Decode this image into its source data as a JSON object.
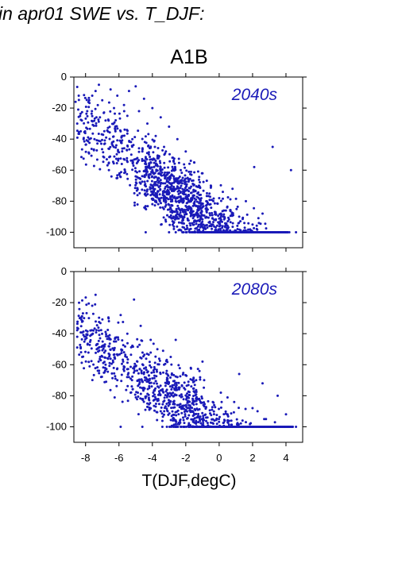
{
  "header": {
    "title": "in apr01 SWE vs. T_DJF:"
  },
  "scenario": "A1B",
  "colors": {
    "points": "#1a1ab8",
    "axis": "#000000"
  },
  "chart_data": [
    {
      "type": "scatter",
      "period_label": "2040s",
      "xlim": [
        -8.7,
        5.0
      ],
      "ylim": [
        -110,
        0
      ],
      "xticks": [
        -8,
        -6,
        -4,
        -2,
        0,
        2,
        4
      ],
      "yticks": [
        0,
        -20,
        -40,
        -60,
        -80,
        -100
      ],
      "ytick_labels": [
        "0",
        "-20",
        "-40",
        "-60",
        "-80",
        "-100"
      ],
      "point_count_estimate": 2400,
      "approx_trend": "SWE change decreases from about -20% near -8 degC to a floor of -100% above 0 degC; dense cluster between -4 and 2 degC",
      "points": [
        [
          -8.6,
          -16
        ],
        [
          -8.5,
          -30
        ],
        [
          -7.9,
          -22
        ],
        [
          -7.6,
          -12
        ],
        [
          -7.4,
          -9
        ],
        [
          -7.2,
          -5
        ],
        [
          -7.0,
          -15
        ],
        [
          -6.8,
          -28
        ],
        [
          -6.5,
          -8
        ],
        [
          -6.3,
          -20
        ],
        [
          -6.1,
          -12
        ],
        [
          -5.9,
          -35
        ],
        [
          -5.7,
          -18
        ],
        [
          -5.5,
          -25
        ],
        [
          -5.4,
          -9
        ],
        [
          -5.2,
          -40
        ],
        [
          -5.0,
          -6
        ],
        [
          -4.8,
          -22
        ],
        [
          -4.6,
          -48
        ],
        [
          -4.5,
          -14
        ],
        [
          -4.3,
          -30
        ],
        [
          -4.1,
          -55
        ],
        [
          -4.0,
          -20
        ],
        [
          -3.8,
          -38
        ],
        [
          -3.6,
          -62
        ],
        [
          -3.5,
          -26
        ],
        [
          -3.3,
          -45
        ],
        [
          -3.1,
          -70
        ],
        [
          -3.0,
          -32
        ],
        [
          -2.8,
          -52
        ],
        [
          -2.6,
          -80
        ],
        [
          -2.5,
          -40
        ],
        [
          -2.3,
          -60
        ],
        [
          -2.1,
          -90
        ],
        [
          -2.0,
          -48
        ],
        [
          -1.8,
          -66
        ],
        [
          -1.6,
          -100
        ],
        [
          -1.5,
          -55
        ],
        [
          -1.3,
          -75
        ],
        [
          -1.1,
          -100
        ],
        [
          -1.0,
          -62
        ],
        [
          -0.8,
          -85
        ],
        [
          -0.6,
          -100
        ],
        [
          -0.5,
          -70
        ],
        [
          -0.3,
          -92
        ],
        [
          -0.1,
          -100
        ],
        [
          0.0,
          -78
        ],
        [
          0.2,
          -100
        ],
        [
          0.4,
          -86
        ],
        [
          0.6,
          -100
        ],
        [
          0.8,
          -72
        ],
        [
          1.0,
          -100
        ],
        [
          1.2,
          -90
        ],
        [
          1.4,
          -100
        ],
        [
          1.6,
          -80
        ],
        [
          1.8,
          -100
        ],
        [
          2.0,
          -95
        ],
        [
          2.3,
          -100
        ],
        [
          2.6,
          -88
        ],
        [
          3.0,
          -100
        ],
        [
          3.4,
          -100
        ],
        [
          3.8,
          -100
        ],
        [
          4.2,
          -100
        ],
        [
          4.6,
          -100
        ],
        [
          -4.4,
          -100
        ],
        [
          -3.0,
          -100
        ],
        [
          -2.2,
          -100
        ],
        [
          3.2,
          -45
        ],
        [
          2.1,
          -58
        ],
        [
          4.3,
          -60
        ]
      ]
    },
    {
      "type": "scatter",
      "period_label": "2080s",
      "xlim": [
        -8.7,
        5.0
      ],
      "ylim": [
        -110,
        0
      ],
      "xticks": [
        -8,
        -6,
        -4,
        -2,
        0,
        2,
        4
      ],
      "xtick_labels": [
        "-8",
        "-6",
        "-4",
        "-2",
        "0",
        "2",
        "4"
      ],
      "yticks": [
        0,
        -20,
        -40,
        -60,
        -80,
        -100
      ],
      "ytick_labels": [
        "0",
        "-20",
        "-40",
        "-60",
        "-80",
        "-100"
      ],
      "xlabel": "T(DJF,degC)",
      "point_count_estimate": 1900,
      "approx_trend": "SWE change decreases from about -30% near -8 degC to a floor of -100% above 0 degC",
      "points": [
        [
          -8.5,
          -42
        ],
        [
          -8.2,
          -55
        ],
        [
          -7.8,
          -30
        ],
        [
          -7.6,
          -22
        ],
        [
          -7.4,
          -15
        ],
        [
          -7.2,
          -38
        ],
        [
          -7.0,
          -48
        ],
        [
          -6.8,
          -60
        ],
        [
          -6.6,
          -32
        ],
        [
          -6.3,
          -45
        ],
        [
          -6.1,
          -70
        ],
        [
          -5.9,
          -28
        ],
        [
          -5.7,
          -52
        ],
        [
          -5.5,
          -40
        ],
        [
          -5.3,
          -78
        ],
        [
          -5.1,
          -18
        ],
        [
          -4.9,
          -58
        ],
        [
          -4.7,
          -35
        ],
        [
          -4.5,
          -65
        ],
        [
          -4.3,
          -85
        ],
        [
          -4.1,
          -44
        ],
        [
          -3.9,
          -72
        ],
        [
          -3.7,
          -50
        ],
        [
          -3.5,
          -90
        ],
        [
          -3.3,
          -60
        ],
        [
          -3.1,
          -80
        ],
        [
          -2.9,
          -55
        ],
        [
          -2.7,
          -95
        ],
        [
          -2.5,
          -68
        ],
        [
          -2.3,
          -100
        ],
        [
          -2.1,
          -75
        ],
        [
          -1.9,
          -88
        ],
        [
          -1.7,
          -62
        ],
        [
          -1.5,
          -100
        ],
        [
          -1.3,
          -82
        ],
        [
          -1.1,
          -100
        ],
        [
          -0.9,
          -70
        ],
        [
          -0.7,
          -94
        ],
        [
          -0.5,
          -100
        ],
        [
          -0.3,
          -86
        ],
        [
          -0.1,
          -100
        ],
        [
          0.1,
          -78
        ],
        [
          0.3,
          -100
        ],
        [
          0.5,
          -92
        ],
        [
          0.7,
          -100
        ],
        [
          0.9,
          -84
        ],
        [
          1.1,
          -100
        ],
        [
          1.4,
          -96
        ],
        [
          1.7,
          -100
        ],
        [
          2.0,
          -88
        ],
        [
          2.3,
          -100
        ],
        [
          2.7,
          -95
        ],
        [
          3.0,
          -100
        ],
        [
          3.4,
          -100
        ],
        [
          3.8,
          -100
        ],
        [
          4.2,
          -100
        ],
        [
          4.6,
          -100
        ],
        [
          -5.9,
          -100
        ],
        [
          -4.6,
          -100
        ],
        [
          2.6,
          -72
        ],
        [
          3.5,
          -80
        ],
        [
          4.0,
          -92
        ],
        [
          1.2,
          -66
        ],
        [
          -1.0,
          -58
        ],
        [
          -2.6,
          -44
        ]
      ]
    }
  ]
}
